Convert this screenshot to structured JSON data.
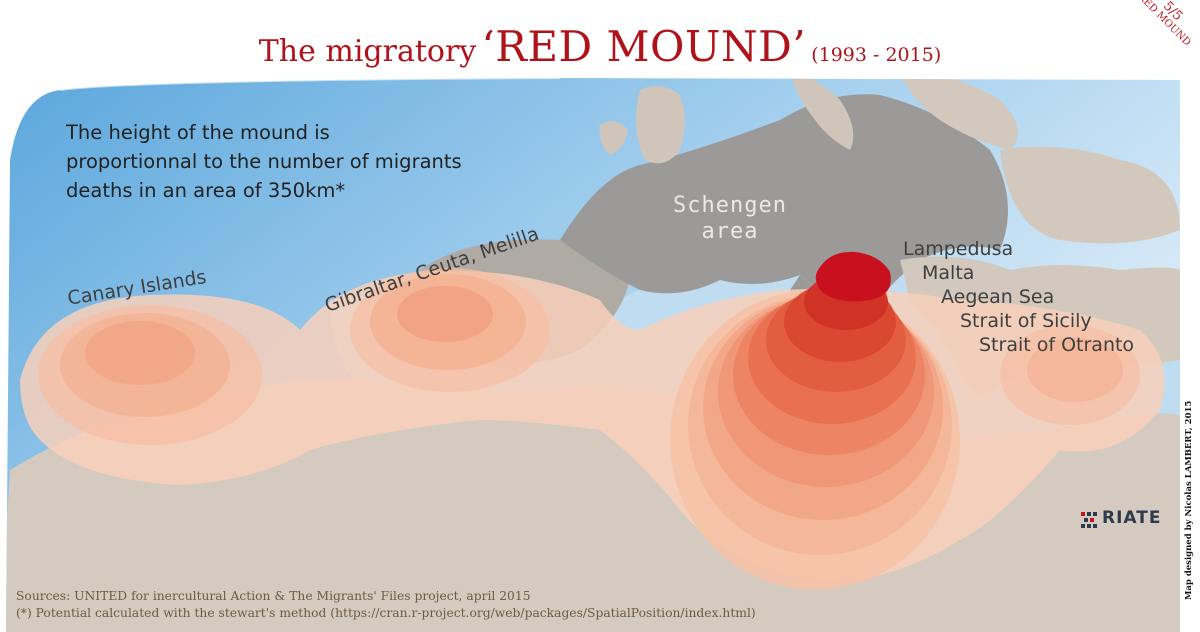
{
  "title": {
    "prefix": "The migratory",
    "main": "‘RED MOUND’",
    "period": "(1993 - 2015)"
  },
  "corner_badge": {
    "number": "5/5",
    "label": "RED MOUND"
  },
  "note": {
    "line1": "The height of the mound is",
    "line2": "proportionnal to the number of migrants",
    "line3": "deaths in an area of 350km*"
  },
  "region_labels": {
    "canary": "Canary Islands",
    "gibraltar": "Gibraltar, Ceuta, Melilla",
    "schengen_line1": "Schengen",
    "schengen_line2": "area",
    "lampedusa": "Lampedusa",
    "malta": "Malta",
    "aegean": "Aegean Sea",
    "sicily": "Strait of Sicily",
    "otranto": "Strait of Otranto"
  },
  "sources": {
    "line1": "Sources:  UNITED for inercultural Action & The Migrants' Files project, april 2015",
    "line2": "(*) Potential calculated with the stewart's method (https://cran.r-project.org/web/packages/SpatialPosition/index.html)"
  },
  "credit": "Map designed by Nicolas LAMBERT, 2015",
  "logo": {
    "text": "RIATE"
  },
  "colors": {
    "title_red": "#b0121a",
    "sea_blue": "#8fc3e8",
    "land": "#d2c8bd",
    "schengen_land": "#9a9898",
    "mound_light": "#f7c9b0",
    "mound_peak": "#c9101e"
  }
}
